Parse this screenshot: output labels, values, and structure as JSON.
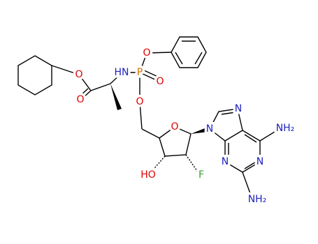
{
  "labels": [
    "O",
    "O",
    "HN",
    "P",
    "O",
    "O",
    "O",
    "O",
    "HO",
    "F",
    "N",
    "N",
    "N",
    "N",
    "NH₂",
    "NH₂"
  ]
}
